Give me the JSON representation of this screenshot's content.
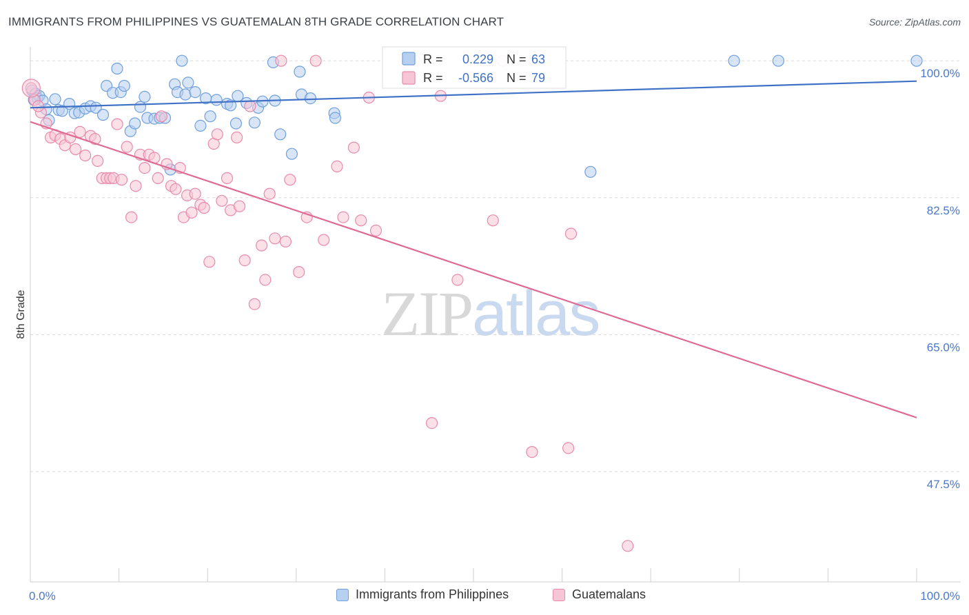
{
  "title": "IMMIGRANTS FROM PHILIPPINES VS GUATEMALAN 8TH GRADE CORRELATION CHART",
  "source": "Source: ZipAtlas.com",
  "watermark": {
    "zip": "ZIP",
    "atlas": "atlas"
  },
  "colors": {
    "blue": "#6f9fdc",
    "blue_fill": "#b8d0f0",
    "blue_line": "#3f72c6",
    "pink": "#e88aab",
    "pink_fill": "#f7c6d6",
    "pink_line": "#df6a93",
    "axis_label": "#4a78c8",
    "grid": "#d9d9d9"
  },
  "legend": {
    "blue": {
      "r_label": "R =",
      "r_value": "0.229",
      "n_label": "N =",
      "n_value": "63"
    },
    "pink": {
      "r_label": "R =",
      "r_value": "-0.566",
      "n_label": "N =",
      "n_value": "79"
    }
  },
  "bottom_legend": {
    "blue": "Immigrants from Philippines",
    "pink": "Guatemalans"
  },
  "chart_data": {
    "type": "scatter",
    "title": "IMMIGRANTS FROM PHILIPPINES VS GUATEMALAN 8TH GRADE CORRELATION CHART",
    "xlabel": "",
    "ylabel": "8th Grade",
    "xlim": [
      0,
      100
    ],
    "ylim": [
      33.4,
      101.6
    ],
    "y_ticks": [
      100.0,
      82.5,
      65.0,
      47.5
    ],
    "y_tick_labels": [
      "100.0%",
      "82.5%",
      "65.0%",
      "47.5%"
    ],
    "x_tick_labels": [
      "0.0%",
      "100.0%"
    ],
    "grid": true,
    "legend_position": "top-center",
    "series": [
      {
        "name": "Immigrants from Philippines",
        "color": "#6f9fdc",
        "trend": {
          "x": [
            0,
            100
          ],
          "y": [
            94.0,
            97.4
          ]
        },
        "points": [
          [
            0.2,
            96.2
          ],
          [
            0.6,
            95.8
          ],
          [
            0.8,
            95.2
          ],
          [
            1.0,
            95.5
          ],
          [
            1.4,
            94.9
          ],
          [
            1.8,
            93.8
          ],
          [
            2.1,
            92.4
          ],
          [
            2.8,
            95.1
          ],
          [
            3.2,
            93.7
          ],
          [
            3.6,
            93.6
          ],
          [
            4.4,
            94.5
          ],
          [
            5.0,
            93.3
          ],
          [
            5.5,
            93.4
          ],
          [
            6.2,
            93.9
          ],
          [
            6.8,
            94.2
          ],
          [
            7.4,
            94.0
          ],
          [
            8.2,
            93.1
          ],
          [
            8.6,
            96.8
          ],
          [
            9.3,
            95.9
          ],
          [
            9.8,
            99.0
          ],
          [
            10.2,
            96.0
          ],
          [
            10.6,
            96.8
          ],
          [
            11.3,
            91.0
          ],
          [
            11.8,
            92.0
          ],
          [
            12.4,
            94.1
          ],
          [
            12.9,
            95.4
          ],
          [
            13.2,
            92.7
          ],
          [
            14.0,
            92.6
          ],
          [
            14.6,
            92.7
          ],
          [
            15.2,
            92.7
          ],
          [
            15.8,
            86.1
          ],
          [
            16.3,
            97.0
          ],
          [
            16.6,
            96.0
          ],
          [
            17.1,
            100.0
          ],
          [
            17.5,
            95.7
          ],
          [
            17.8,
            97.2
          ],
          [
            18.6,
            96.0
          ],
          [
            19.2,
            91.7
          ],
          [
            19.8,
            95.2
          ],
          [
            20.3,
            92.9
          ],
          [
            21.0,
            95.0
          ],
          [
            22.2,
            94.5
          ],
          [
            22.6,
            94.3
          ],
          [
            23.2,
            92.0
          ],
          [
            23.4,
            95.5
          ],
          [
            24.4,
            94.6
          ],
          [
            25.3,
            92.1
          ],
          [
            25.7,
            94.0
          ],
          [
            26.2,
            94.8
          ],
          [
            27.4,
            99.8
          ],
          [
            27.6,
            94.9
          ],
          [
            28.2,
            90.6
          ],
          [
            29.5,
            88.1
          ],
          [
            30.4,
            98.6
          ],
          [
            30.6,
            95.7
          ],
          [
            31.6,
            95.2
          ],
          [
            34.3,
            93.3
          ],
          [
            34.4,
            92.7
          ],
          [
            63.2,
            85.8
          ],
          [
            79.4,
            100.0
          ],
          [
            84.4,
            100.0
          ],
          [
            100.0,
            100.0
          ],
          [
            0.4,
            95.0
          ]
        ]
      },
      {
        "name": "Guatemalans",
        "color": "#e88aab",
        "trend": {
          "x": [
            0,
            100
          ],
          "y": [
            92.2,
            54.4
          ]
        },
        "points": [
          [
            0.1,
            96.5
          ],
          [
            0.5,
            95.0
          ],
          [
            1.2,
            93.4
          ],
          [
            1.8,
            92.0
          ],
          [
            2.3,
            90.2
          ],
          [
            2.8,
            90.5
          ],
          [
            3.4,
            90.0
          ],
          [
            3.9,
            89.2
          ],
          [
            4.5,
            90.2
          ],
          [
            5.1,
            88.7
          ],
          [
            5.6,
            90.9
          ],
          [
            6.2,
            87.9
          ],
          [
            6.8,
            90.4
          ],
          [
            7.3,
            90.0
          ],
          [
            7.6,
            87.2
          ],
          [
            8.1,
            85.0
          ],
          [
            8.6,
            85.0
          ],
          [
            9.0,
            85.0
          ],
          [
            9.4,
            85.0
          ],
          [
            9.8,
            91.9
          ],
          [
            10.3,
            84.8
          ],
          [
            10.9,
            89.0
          ],
          [
            11.4,
            80.0
          ],
          [
            11.9,
            84.0
          ],
          [
            12.4,
            88.0
          ],
          [
            12.9,
            86.3
          ],
          [
            13.4,
            88.0
          ],
          [
            14.0,
            87.6
          ],
          [
            14.4,
            85.0
          ],
          [
            14.8,
            92.9
          ],
          [
            15.4,
            86.8
          ],
          [
            15.9,
            84.0
          ],
          [
            16.4,
            83.6
          ],
          [
            16.9,
            86.3
          ],
          [
            17.3,
            80.0
          ],
          [
            17.7,
            82.8
          ],
          [
            18.2,
            80.6
          ],
          [
            18.6,
            83.0
          ],
          [
            19.2,
            81.6
          ],
          [
            19.6,
            81.2
          ],
          [
            20.2,
            74.3
          ],
          [
            20.7,
            89.4
          ],
          [
            21.1,
            90.6
          ],
          [
            21.6,
            82.1
          ],
          [
            22.2,
            85.0
          ],
          [
            22.6,
            80.9
          ],
          [
            23.3,
            90.2
          ],
          [
            23.6,
            81.4
          ],
          [
            24.2,
            74.5
          ],
          [
            24.8,
            94.2
          ],
          [
            25.3,
            68.9
          ],
          [
            26.1,
            76.4
          ],
          [
            26.5,
            72.0
          ],
          [
            27.0,
            83.0
          ],
          [
            27.6,
            77.3
          ],
          [
            28.3,
            100.0
          ],
          [
            28.8,
            76.9
          ],
          [
            29.3,
            84.8
          ],
          [
            30.3,
            73.0
          ],
          [
            31.2,
            80.0
          ],
          [
            32.2,
            100.0
          ],
          [
            33.1,
            77.1
          ],
          [
            34.6,
            86.5
          ],
          [
            35.3,
            80.0
          ],
          [
            36.5,
            88.9
          ],
          [
            37.3,
            79.6
          ],
          [
            38.2,
            95.3
          ],
          [
            39.0,
            78.3
          ],
          [
            43.4,
            100.0
          ],
          [
            45.3,
            53.7
          ],
          [
            46.3,
            95.5
          ],
          [
            48.2,
            72.0
          ],
          [
            52.2,
            79.6
          ],
          [
            53.3,
            100.0
          ],
          [
            56.6,
            50.0
          ],
          [
            60.7,
            50.5
          ],
          [
            61.0,
            77.9
          ],
          [
            67.4,
            38.0
          ],
          [
            0.9,
            94.2
          ]
        ]
      }
    ]
  }
}
